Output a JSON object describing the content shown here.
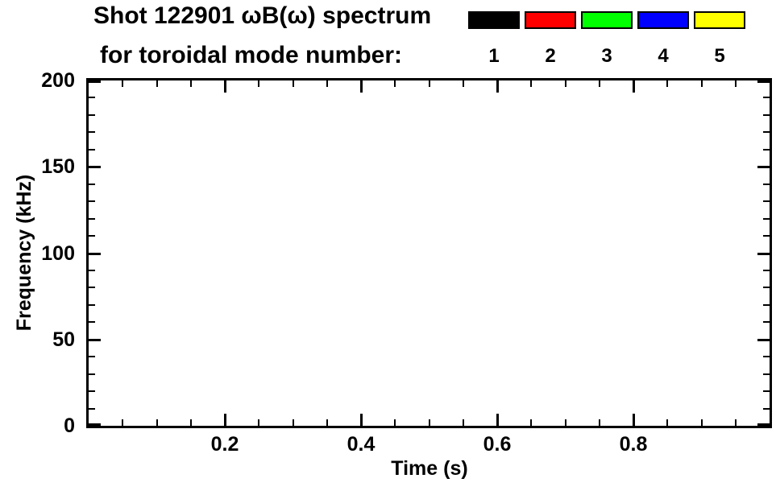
{
  "header": {
    "title": "Shot 122901 ωB(ω) spectrum",
    "subtitle": "for toroidal mode number:"
  },
  "legend": {
    "entries": [
      {
        "mode": "1",
        "color": "#000000"
      },
      {
        "mode": "2",
        "color": "#ff0000"
      },
      {
        "mode": "3",
        "color": "#00ff00"
      },
      {
        "mode": "4",
        "color": "#0000ff"
      },
      {
        "mode": "5",
        "color": "#ffff00"
      }
    ]
  },
  "chart_data": {
    "type": "scatter",
    "title": "Shot 122901 ωB(ω) spectrum for toroidal mode number:",
    "xlabel": "Time (s)",
    "ylabel": "Frequency (kHz)",
    "xlim": [
      0.0,
      1.0
    ],
    "ylim": [
      0,
      200
    ],
    "x_ticks": [
      0.2,
      0.4,
      0.6,
      0.8
    ],
    "x_tick_labels": [
      "0.2",
      "0.4",
      "0.6",
      "0.8"
    ],
    "y_ticks": [
      0,
      50,
      100,
      150,
      200
    ],
    "y_tick_labels": [
      "0",
      "50",
      "100",
      "150",
      "200"
    ],
    "x_minor_step": 0.05,
    "y_minor_step": 10,
    "grid": false,
    "legend_position": "top-right",
    "series": [
      {
        "name": "mode 1",
        "color": "#000000",
        "points": []
      },
      {
        "name": "mode 2",
        "color": "#ff0000",
        "points": []
      },
      {
        "name": "mode 3",
        "color": "#00ff00",
        "points": []
      },
      {
        "name": "mode 4",
        "color": "#0000ff",
        "points": []
      },
      {
        "name": "mode 5",
        "color": "#ffff00",
        "points": []
      }
    ]
  }
}
